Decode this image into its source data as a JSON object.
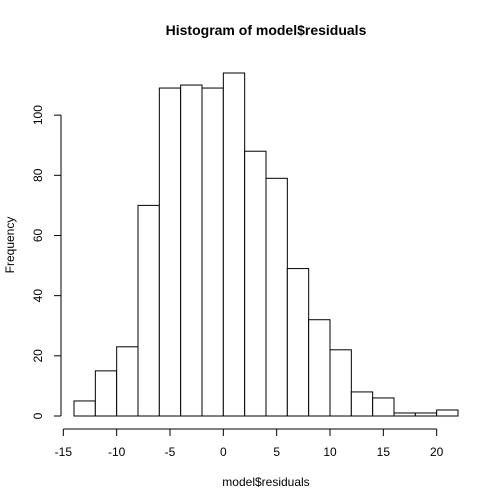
{
  "chart_data": {
    "type": "bar",
    "title": "Histogram of model$residuals",
    "xlabel": "model$residuals",
    "ylabel": "Frequency",
    "bin_width": 2,
    "bins": [
      {
        "x0": -14,
        "x1": -12,
        "count": 5
      },
      {
        "x0": -12,
        "x1": -10,
        "count": 15
      },
      {
        "x0": -10,
        "x1": -8,
        "count": 23
      },
      {
        "x0": -8,
        "x1": -6,
        "count": 70
      },
      {
        "x0": -6,
        "x1": -4,
        "count": 109
      },
      {
        "x0": -4,
        "x1": -2,
        "count": 110
      },
      {
        "x0": -2,
        "x1": 0,
        "count": 109
      },
      {
        "x0": 0,
        "x1": 2,
        "count": 114
      },
      {
        "x0": 2,
        "x1": 4,
        "count": 88
      },
      {
        "x0": 4,
        "x1": 6,
        "count": 79
      },
      {
        "x0": 6,
        "x1": 8,
        "count": 49
      },
      {
        "x0": 8,
        "x1": 10,
        "count": 32
      },
      {
        "x0": 10,
        "x1": 12,
        "count": 22
      },
      {
        "x0": 12,
        "x1": 14,
        "count": 8
      },
      {
        "x0": 14,
        "x1": 16,
        "count": 6
      },
      {
        "x0": 16,
        "x1": 18,
        "count": 1
      },
      {
        "x0": 18,
        "x1": 20,
        "count": 1
      },
      {
        "x0": 20,
        "x1": 22,
        "count": 2
      }
    ],
    "xticks": [
      -15,
      -10,
      -5,
      0,
      5,
      10,
      15,
      20
    ],
    "yticks": [
      0,
      20,
      40,
      60,
      80,
      100
    ],
    "xlim": [
      -14,
      22
    ],
    "ylim": [
      0,
      114
    ],
    "grid": false,
    "legend": "none"
  }
}
